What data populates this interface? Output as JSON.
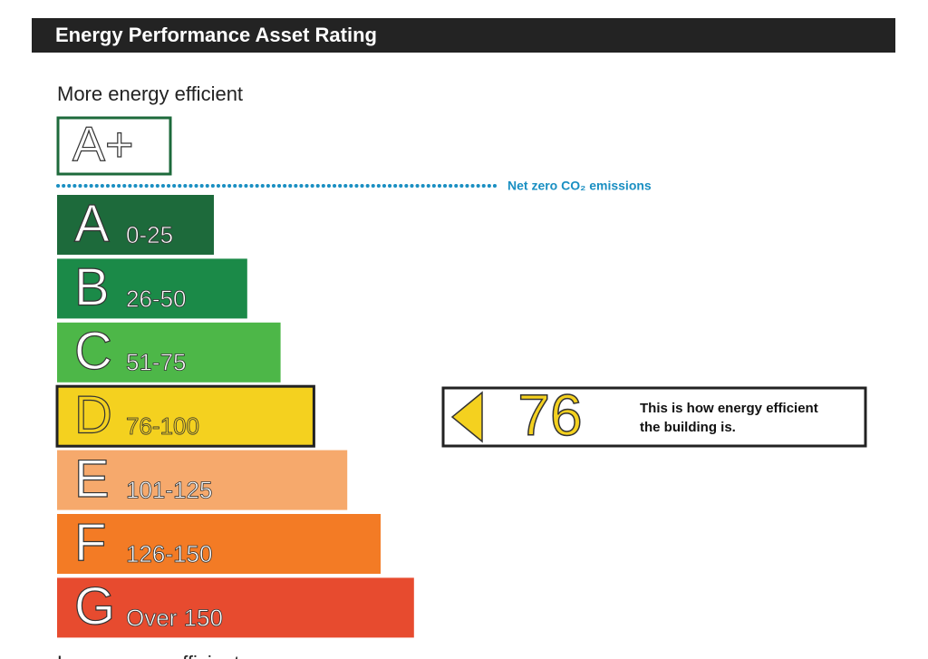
{
  "header": {
    "title": "Energy Performance Asset Rating"
  },
  "top_label": "More energy efficient",
  "bottom_label": "Less energy efficient",
  "top_band": {
    "letter": "A+"
  },
  "net_zero_label": "Net zero CO₂ emissions",
  "bands": [
    {
      "letter": "A",
      "range": "0-25",
      "color": "#1d6a3b"
    },
    {
      "letter": "B",
      "range": "26-50",
      "color": "#1b8a48"
    },
    {
      "letter": "C",
      "range": "51-75",
      "color": "#4db748"
    },
    {
      "letter": "D",
      "range": "76-100",
      "color": "#f4d11f"
    },
    {
      "letter": "E",
      "range": "101-125",
      "color": "#f6a96c"
    },
    {
      "letter": "F",
      "range": "126-150",
      "color": "#f37b25"
    },
    {
      "letter": "G",
      "range": "Over 150",
      "color": "#e74b2f"
    }
  ],
  "rating": {
    "value": "76",
    "band_index": 3,
    "message_line1": "This is how energy efficient",
    "message_line2": "the building is."
  }
}
